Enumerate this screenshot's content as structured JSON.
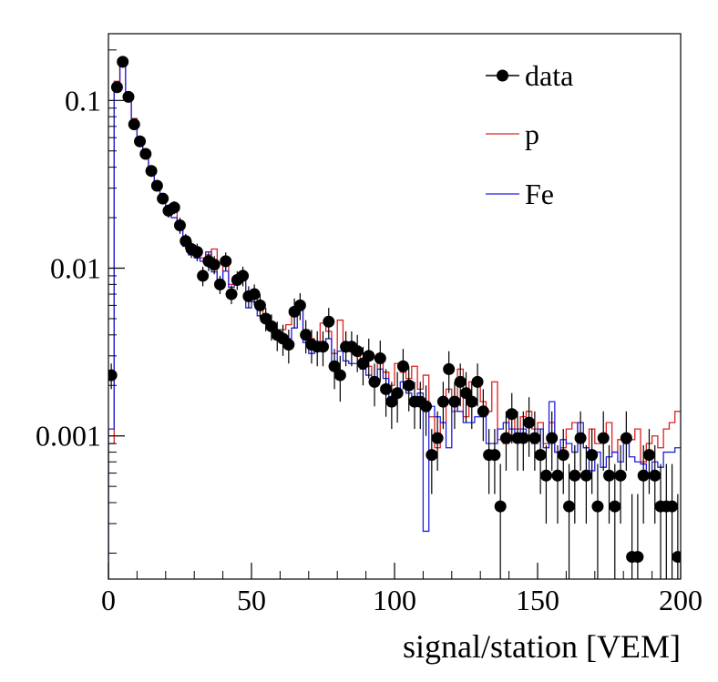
{
  "chart_data": {
    "type": "histogram",
    "xlabel": "signal/station [VEM]",
    "ylabel": "",
    "xlim": [
      0,
      200
    ],
    "ylim": [
      0.00014,
      0.25
    ],
    "yscale": "log",
    "bin_width": 2,
    "x_ticks": [
      0,
      50,
      100,
      150,
      200
    ],
    "x_tick_labels": [
      "0",
      "50",
      "100",
      "150",
      "200"
    ],
    "y_ticks": [
      0.1,
      0.01,
      0.001
    ],
    "y_tick_labels": [
      "0.1",
      "0.01",
      "0.001"
    ],
    "legend": {
      "placement": "top-right",
      "entries": [
        {
          "label": "data",
          "style": "marker"
        },
        {
          "label": "p",
          "style": "line"
        },
        {
          "label": "Fe",
          "style": "line"
        }
      ]
    },
    "colors": {
      "data": "#000000",
      "p": "#e02020",
      "Fe": "#2020e0"
    },
    "series": [
      {
        "name": "data",
        "x": [
          1,
          3,
          5,
          7,
          9,
          11,
          13,
          15,
          17,
          19,
          21,
          23,
          25,
          27,
          29,
          31,
          33,
          35,
          37,
          39,
          41,
          43,
          45,
          47,
          49,
          51,
          53,
          55,
          57,
          59,
          61,
          63,
          65,
          67,
          69,
          71,
          73,
          75,
          77,
          79,
          81,
          83,
          85,
          87,
          89,
          91,
          93,
          95,
          97,
          99,
          101,
          103,
          105,
          107,
          109,
          111,
          113,
          115,
          117,
          119,
          121,
          123,
          125,
          127,
          129,
          131,
          133,
          135,
          137,
          139,
          141,
          143,
          145,
          147,
          149,
          151,
          153,
          155,
          157,
          159,
          161,
          163,
          165,
          167,
          169,
          171,
          173,
          175,
          177,
          179,
          181,
          183,
          185,
          187,
          189,
          191,
          193,
          195,
          197,
          199
        ],
        "y": [
          0.0023,
          0.12,
          0.17,
          0.105,
          0.072,
          0.057,
          0.048,
          0.038,
          0.031,
          0.026,
          0.022,
          0.023,
          0.018,
          0.0145,
          0.013,
          0.0125,
          0.009,
          0.011,
          0.0105,
          0.008,
          0.011,
          0.007,
          0.0085,
          0.009,
          0.0068,
          0.007,
          0.006,
          0.005,
          0.0045,
          0.004,
          0.0038,
          0.0035,
          0.0055,
          0.006,
          0.004,
          0.0035,
          0.0034,
          0.0034,
          0.0048,
          0.0026,
          0.0023,
          0.0034,
          0.0034,
          0.0032,
          0.0027,
          0.003,
          0.0021,
          0.0029,
          0.0019,
          0.0016,
          0.0018,
          0.0026,
          0.002,
          0.0016,
          0.0016,
          0.0015,
          0.00077,
          0.00097,
          0.0016,
          0.0025,
          0.0016,
          0.0021,
          0.0018,
          0.0016,
          0.0021,
          0.0014,
          0.00077,
          0.00077,
          0.00038,
          0.00097,
          0.00135,
          0.00097,
          0.00097,
          0.0012,
          0.00097,
          0.00077,
          0.00058,
          0.00097,
          0.00058,
          0.00077,
          0.00038,
          0.00058,
          0.00097,
          0.00058,
          0.00077,
          0.00038,
          0.00097,
          0.00058,
          0.00038,
          0.00058,
          0.00097,
          0.00019,
          0.00019,
          0.00058,
          0.00077,
          0.00058,
          0.00038,
          0.00038,
          0.00038,
          0.00019
        ],
        "error_high": [
          0.0027,
          0.125,
          0.177,
          0.11,
          0.076,
          0.06,
          0.051,
          0.041,
          0.033,
          0.028,
          0.024,
          0.025,
          0.02,
          0.016,
          0.0145,
          0.014,
          0.0102,
          0.0124,
          0.0118,
          0.009,
          0.0124,
          0.0079,
          0.0096,
          0.0102,
          0.0078,
          0.008,
          0.007,
          0.0058,
          0.0053,
          0.0048,
          0.0046,
          0.0043,
          0.0066,
          0.0071,
          0.0049,
          0.0043,
          0.0042,
          0.0042,
          0.0058,
          0.0033,
          0.003,
          0.0042,
          0.0042,
          0.004,
          0.0034,
          0.0038,
          0.0027,
          0.0037,
          0.0025,
          0.0021,
          0.0024,
          0.0033,
          0.0026,
          0.0021,
          0.0021,
          0.002,
          0.0011,
          0.0014,
          0.0021,
          0.0032,
          0.0021,
          0.0027,
          0.0024,
          0.0021,
          0.0027,
          0.0019,
          0.0011,
          0.0011,
          0.00068,
          0.0014,
          0.0018,
          0.0014,
          0.0014,
          0.0017,
          0.0014,
          0.0011,
          0.00088,
          0.0014,
          0.00088,
          0.0011,
          0.00068,
          0.00088,
          0.0014,
          0.00088,
          0.0011,
          0.00068,
          0.0014,
          0.00088,
          0.00068,
          0.00088,
          0.0014,
          0.00045,
          0.00045,
          0.00088,
          0.0011,
          0.00088,
          0.00068,
          0.00068,
          0.00068,
          0.00045
        ],
        "error_low": [
          0.0019,
          0.115,
          0.163,
          0.1,
          0.068,
          0.054,
          0.045,
          0.035,
          0.029,
          0.024,
          0.02,
          0.021,
          0.016,
          0.013,
          0.0115,
          0.011,
          0.0078,
          0.0096,
          0.0092,
          0.007,
          0.0096,
          0.0061,
          0.0074,
          0.0078,
          0.0058,
          0.006,
          0.005,
          0.0042,
          0.0037,
          0.0032,
          0.003,
          0.0027,
          0.0044,
          0.0049,
          0.0031,
          0.0027,
          0.0026,
          0.0026,
          0.0038,
          0.0019,
          0.0016,
          0.0026,
          0.0026,
          0.0024,
          0.002,
          0.0022,
          0.0015,
          0.0021,
          0.0013,
          0.0011,
          0.0012,
          0.0019,
          0.0014,
          0.0011,
          0.0011,
          0.001,
          0.00045,
          0.00062,
          0.0011,
          0.0018,
          0.0011,
          0.0015,
          0.0012,
          0.0011,
          0.0015,
          0.00093,
          0.00045,
          0.00045,
          0.00014,
          0.00062,
          0.0009,
          0.00062,
          0.00062,
          0.00075,
          0.00062,
          0.00045,
          0.0003,
          0.00062,
          0.0003,
          0.00045,
          0.00014,
          0.0003,
          0.00062,
          0.0003,
          0.00045,
          0.00014,
          0.00062,
          0.0003,
          0.00014,
          0.0003,
          0.00062,
          0.00014,
          0.00014,
          0.0003,
          0.00045,
          0.0003,
          0.00014,
          0.00014,
          0.00014,
          0.00014
        ]
      },
      {
        "name": "p",
        "bin_edges_start": 0,
        "y": [
          0.0009,
          0.13,
          0.175,
          0.1,
          0.078,
          0.055,
          0.05,
          0.04,
          0.03,
          0.027,
          0.021,
          0.024,
          0.017,
          0.0145,
          0.013,
          0.012,
          0.0115,
          0.012,
          0.013,
          0.0085,
          0.0105,
          0.008,
          0.009,
          0.0095,
          0.0065,
          0.0072,
          0.0058,
          0.0048,
          0.0044,
          0.0042,
          0.0043,
          0.0046,
          0.0058,
          0.0062,
          0.0043,
          0.0038,
          0.0033,
          0.0047,
          0.0042,
          0.0031,
          0.0049,
          0.0034,
          0.0036,
          0.0031,
          0.0029,
          0.0026,
          0.0022,
          0.0028,
          0.0024,
          0.002,
          0.0027,
          0.0024,
          0.0022,
          0.0026,
          0.0019,
          0.0023,
          0.0013,
          0.00085,
          0.0012,
          0.0019,
          0.0014,
          0.0025,
          0.0013,
          0.0021,
          0.0022,
          0.0016,
          0.0014,
          0.0021,
          0.00095,
          0.0009,
          0.0013,
          0.0011,
          0.0013,
          0.0014,
          0.0011,
          0.0012,
          0.0009,
          0.0012,
          0.0008,
          0.00085,
          0.0011,
          0.0012,
          0.001,
          0.00085,
          0.0011,
          0.0009,
          0.00095,
          0.0012,
          0.0008,
          0.00095,
          0.0009,
          0.00095,
          0.0011,
          0.0007,
          0.0009,
          0.001,
          0.00085,
          0.0011,
          0.0012,
          0.0014
        ]
      },
      {
        "name": "Fe",
        "bin_edges_start": 0,
        "y": [
          0.0011,
          0.12,
          0.16,
          0.105,
          0.076,
          0.056,
          0.047,
          0.039,
          0.031,
          0.026,
          0.022,
          0.02,
          0.017,
          0.0135,
          0.012,
          0.0115,
          0.011,
          0.0125,
          0.0095,
          0.0083,
          0.0096,
          0.0077,
          0.0082,
          0.0088,
          0.0058,
          0.0063,
          0.0052,
          0.0047,
          0.0043,
          0.0039,
          0.004,
          0.0038,
          0.0044,
          0.0058,
          0.0036,
          0.0031,
          0.0032,
          0.0033,
          0.0038,
          0.0026,
          0.0032,
          0.0028,
          0.0027,
          0.0027,
          0.0025,
          0.0023,
          0.0021,
          0.0025,
          0.0022,
          0.0017,
          0.0019,
          0.0021,
          0.0018,
          0.0016,
          0.0018,
          0.00027,
          0.0015,
          0.0013,
          0.0012,
          0.00085,
          0.0017,
          0.0014,
          0.0012,
          0.0012,
          0.0013,
          0.0013,
          0.0009,
          0.0009,
          0.0011,
          0.0012,
          0.0011,
          0.00098,
          0.0011,
          0.00095,
          0.0009,
          0.0011,
          0.00085,
          0.0016,
          0.0008,
          0.00095,
          0.0009,
          0.0008,
          0.0012,
          0.00085,
          0.00062,
          0.0008,
          0.00065,
          0.00075,
          0.0008,
          0.0007,
          0.0009,
          0.00075,
          0.0007,
          0.00068,
          0.0006,
          0.0007,
          0.00065,
          0.0008,
          0.0008,
          0.00085
        ]
      }
    ]
  }
}
